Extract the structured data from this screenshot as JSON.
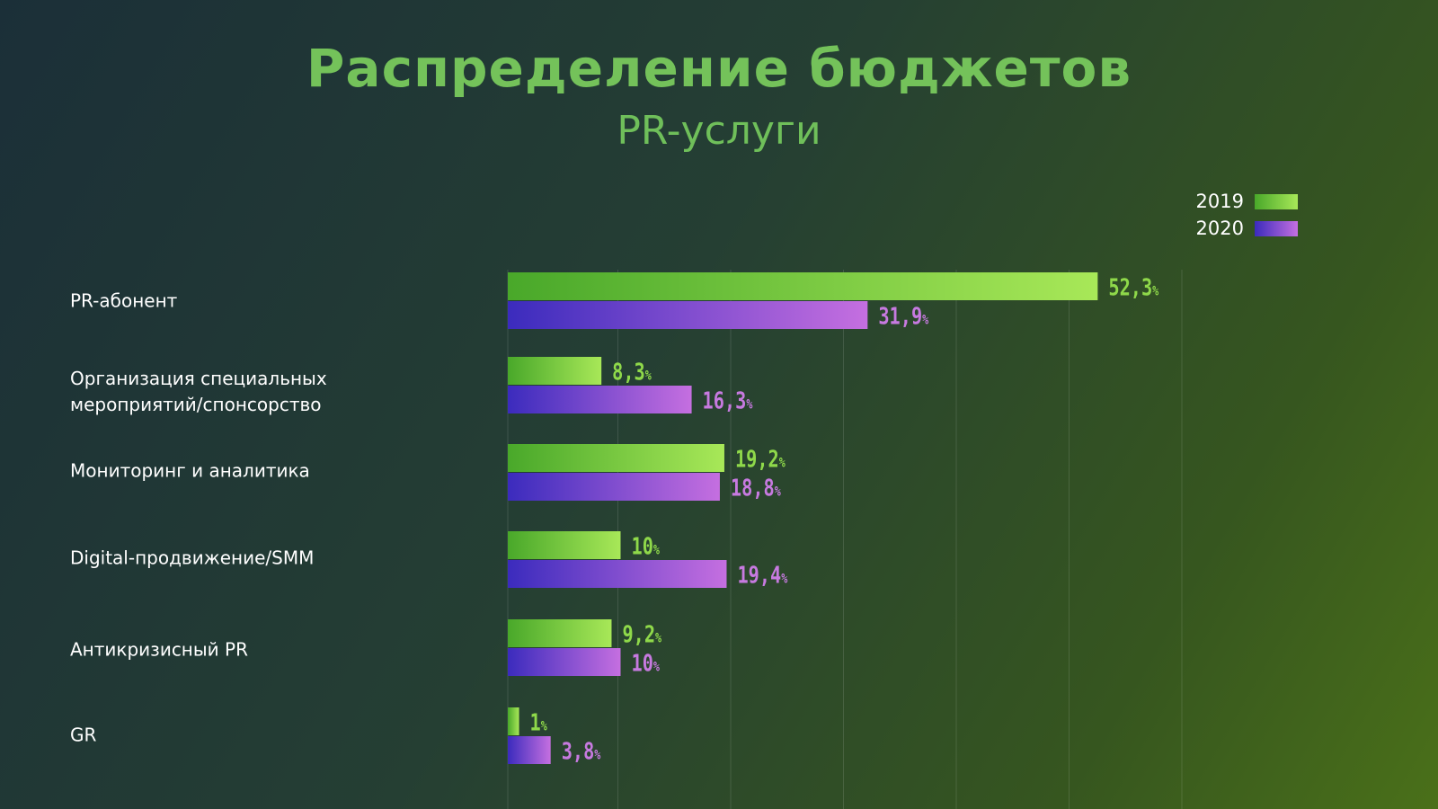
{
  "chart_data": {
    "type": "bar",
    "orientation": "horizontal",
    "title": "Распределение бюджетов",
    "subtitle": "PR-услуги",
    "categories": [
      "PR-абонент",
      "Организация специальных мероприятий/спонсорство",
      "Мониторинг и аналитика",
      "Digital-продвижение/SMM",
      "Антикризисный PR",
      "GR"
    ],
    "series": [
      {
        "name": "2019",
        "values": [
          52.3,
          8.3,
          19.2,
          10,
          9.2,
          1
        ],
        "labels": [
          "52,3",
          "8,3",
          "19,2",
          "10",
          "9,2",
          "1"
        ],
        "color": "#8fd94a"
      },
      {
        "name": "2020",
        "values": [
          31.9,
          16.3,
          18.8,
          19.4,
          10,
          3.8
        ],
        "labels": [
          "31,9",
          "16,3",
          "18,8",
          "19,4",
          "10",
          "3,8"
        ],
        "color": "#9b5ad8"
      }
    ],
    "value_unit": "%",
    "xlim": [
      0,
      60
    ],
    "grid": true,
    "legend_position": "top-right"
  },
  "colors": {
    "title": "#74c25a",
    "label_2019": "#8fd94a",
    "label_2020": "#c77ae0",
    "gradient_2019": [
      "#49a82a",
      "#a8e858"
    ],
    "gradient_2020": [
      "#3b2bbd",
      "#c56fe0"
    ],
    "grid": "#ffffff"
  }
}
